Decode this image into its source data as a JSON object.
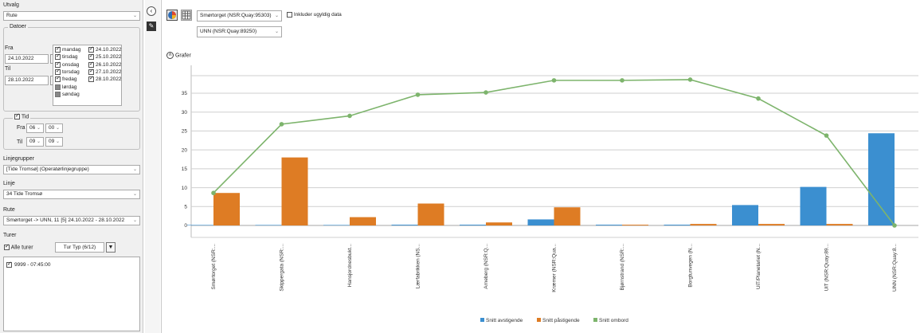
{
  "sidebar": {
    "utvalg_label": "Utvalg",
    "utvalg_value": "Rute",
    "datoer_label": "Datoer",
    "fra_label": "Fra",
    "fra_value": "24.10.2022",
    "til_label": "Til",
    "til_value": "28.10.2022",
    "weekdays": [
      {
        "label": "mandag",
        "state": "checked"
      },
      {
        "label": "tirsdag",
        "state": "checked"
      },
      {
        "label": "onsdag",
        "state": "checked"
      },
      {
        "label": "torsdag",
        "state": "checked"
      },
      {
        "label": "fredag",
        "state": "checked"
      },
      {
        "label": "lørdag",
        "state": "filled"
      },
      {
        "label": "søndag",
        "state": "filled"
      }
    ],
    "dates": [
      {
        "label": "24.10.2022",
        "state": "checked"
      },
      {
        "label": "25.10.2022",
        "state": "checked"
      },
      {
        "label": "26.10.2022",
        "state": "checked"
      },
      {
        "label": "27.10.2022",
        "state": "checked"
      },
      {
        "label": "28.10.2022",
        "state": "checked"
      }
    ],
    "tid_label": "Tid",
    "tid_fra_label": "Fra",
    "tid_fra_hour": "06",
    "tid_fra_min": "00",
    "tid_til_label": "Til",
    "tid_til_hour": "09",
    "tid_til_min": "09",
    "linjegrupper_label": "Linjegrupper",
    "linjegrupper_value": "[Tide Tromsø] (Operatørlinjegruppe)",
    "linje_label": "Linje",
    "linje_value": "34 Tide Tromsø",
    "rute_label": "Rute",
    "rute_value": "Smørtorget -> UNN, 11 [5]   24.10.2022 - 28.10.2022",
    "turer_label": "Turer",
    "alle_turer_label": "Alle turer",
    "tur_typ_label": "Tur Typ (6/12)",
    "trips": [
      {
        "label": "9999 - 07:45:00"
      }
    ]
  },
  "toolbar": {
    "from_stop": "Smørtorget (NSR:Quay:95303)",
    "to_stop": "UNN (NSR:Quay:89250)",
    "include_invalid_label": "Inkluder ugyldig data",
    "grafer_label": "Grafer"
  },
  "colors": {
    "avstigende": "#3b8fd0",
    "pastigende": "#de7c24",
    "ombord": "#7db46c"
  },
  "chart_data": {
    "type": "bar",
    "categories": [
      "Smørtorget (NSR:...",
      "Skippergata (NSR:...",
      "Hansjordnesbukt...",
      "Lærfabrikken (NS...",
      "Arneberg (NSR:Q...",
      "Kræmer (NSR:Qua...",
      "Bjørnstrand (NSR:...",
      "Borgtunvegen (N...",
      "UiT/Planetariet (N...",
      "UiT (NSR:Quay:89...",
      "UNN (NSR:Quay:8..."
    ],
    "series": [
      {
        "name": "Snitt avstigende",
        "type": "bar",
        "values": [
          0,
          0,
          0,
          0.2,
          0.2,
          1.6,
          0.2,
          0.2,
          5.4,
          10.2,
          24.4
        ]
      },
      {
        "name": "Snitt påstigende",
        "type": "bar",
        "values": [
          8.6,
          18.0,
          2.2,
          5.8,
          0.8,
          4.8,
          0.2,
          0.4,
          0.4,
          0.4,
          0
        ]
      },
      {
        "name": "Snitt ombord",
        "type": "line",
        "values": [
          8.6,
          26.8,
          29.0,
          34.6,
          35.2,
          38.4,
          38.4,
          38.6,
          33.6,
          23.8,
          0
        ]
      }
    ],
    "yticks": [
      0,
      5,
      10,
      15,
      20,
      25,
      30,
      35
    ],
    "ylim": [
      -2,
      40
    ],
    "legend_position": "bottom"
  }
}
